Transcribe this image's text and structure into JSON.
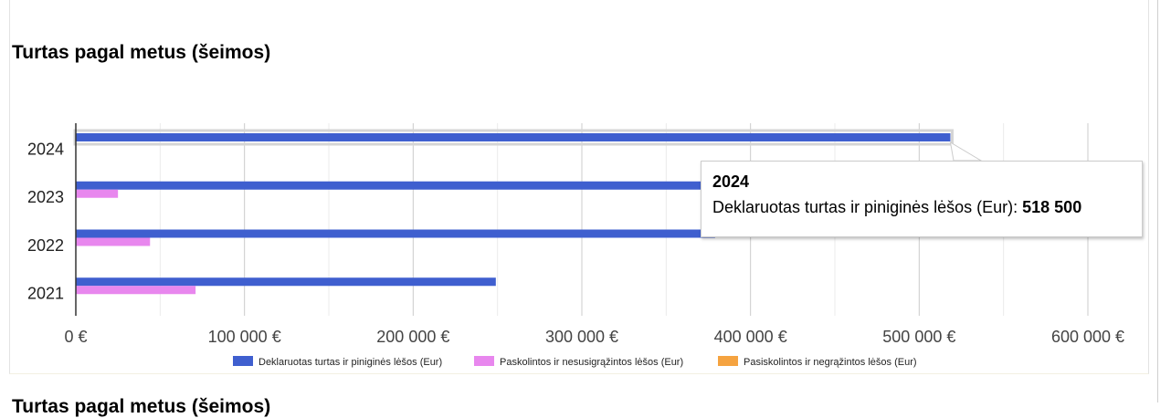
{
  "section": {
    "title": "Turtas pagal metus (šeimos)",
    "next_title": "Turtas pagal metus (šeimos)"
  },
  "chart_data": {
    "type": "bar",
    "orientation": "horizontal",
    "title": "Turtas pagal metus (šeimos)",
    "categories": [
      "2024",
      "2023",
      "2022",
      "2021"
    ],
    "series": [
      {
        "name": "Deklaruotas turtas ir piniginės lėšos (Eur)",
        "color": "#3f5fcf",
        "values": [
          518500,
          372000,
          379000,
          249000
        ]
      },
      {
        "name": "Paskolintos ir nesusigrąžintos lėšos (Eur)",
        "color": "#e887ee",
        "values": [
          0,
          25000,
          44000,
          71000
        ]
      },
      {
        "name": "Pasiskolintos ir negrąžintos lėšos (Eur)",
        "color": "#f5a340",
        "values": [
          0,
          0,
          0,
          0
        ]
      }
    ],
    "x_ticks": [
      0,
      100000,
      200000,
      300000,
      400000,
      500000,
      600000
    ],
    "x_tick_labels": [
      "0 €",
      "100 000 €",
      "200 000 €",
      "300 000 €",
      "400 000 €",
      "500 000 €",
      "600 000 €"
    ],
    "xlim": [
      0,
      600000
    ],
    "grid": true,
    "legend_position": "bottom",
    "highlighted_category": "2024"
  },
  "tooltip": {
    "title": "2024",
    "label": "Deklaruotas turtas ir piniginės lėšos (Eur): ",
    "value": "518 500"
  }
}
